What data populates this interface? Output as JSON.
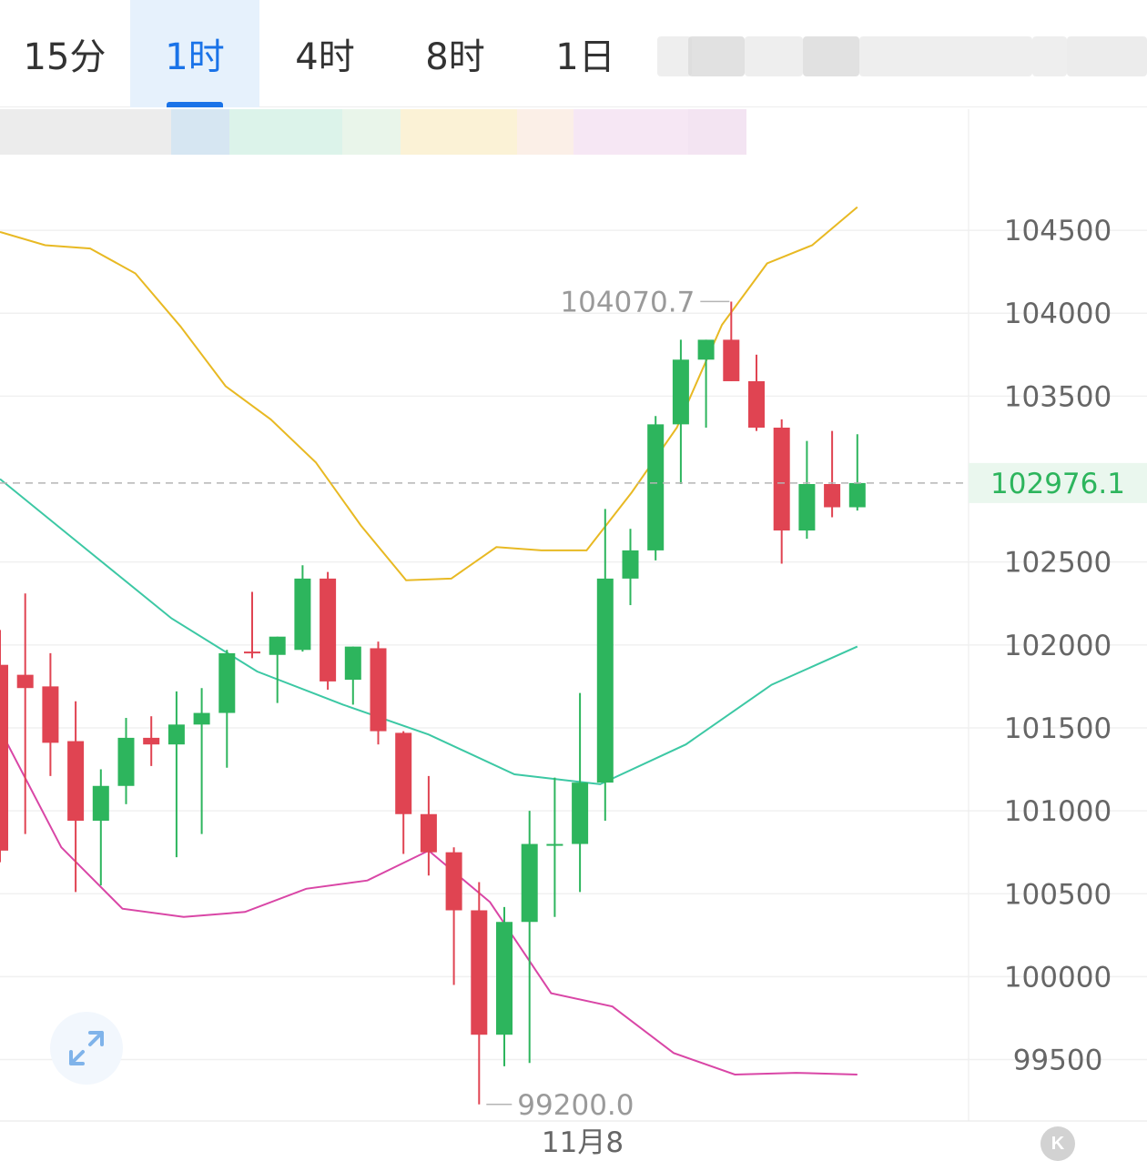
{
  "tabs": [
    {
      "label": "15分",
      "active": false
    },
    {
      "label": "1时",
      "active": true
    },
    {
      "label": "4时",
      "active": false
    },
    {
      "label": "8时",
      "active": false
    },
    {
      "label": "1日",
      "active": false
    }
  ],
  "colors": {
    "up": "#2db55d",
    "down": "#e04452",
    "boll_upper": "#e8b923",
    "boll_mid": "#3cc8a4",
    "boll_lower": "#d946a6",
    "current_price": "#2db55d",
    "active_tab": "#1a73e8",
    "grid": "#f0f0f0"
  },
  "icons": {
    "expand": "expand-arrows-icon",
    "k": "k-badge-icon"
  },
  "chart_data": {
    "type": "candlestick",
    "interval": "1时",
    "yticks": [
      104500,
      104000,
      103500,
      102500,
      102000,
      101500,
      101000,
      100500,
      100000,
      99500
    ],
    "ylim": [
      99130,
      105230
    ],
    "x_label": "11月8",
    "current_price": "102976.1",
    "current_price_value": 102976.1,
    "high_label": "104070.7",
    "high_value": 104070.7,
    "low_label": "99200.0",
    "low_value": 99200.0,
    "candles": [
      {
        "o": 101880,
        "h": 102090,
        "l": 100690,
        "c": 100760
      },
      {
        "o": 101820,
        "h": 102310,
        "l": 100860,
        "c": 101740
      },
      {
        "o": 101750,
        "h": 101950,
        "l": 101210,
        "c": 101410
      },
      {
        "o": 101420,
        "h": 101660,
        "l": 100510,
        "c": 100940
      },
      {
        "o": 100940,
        "h": 101250,
        "l": 100550,
        "c": 101150
      },
      {
        "o": 101150,
        "h": 101560,
        "l": 101040,
        "c": 101440
      },
      {
        "o": 101440,
        "h": 101570,
        "l": 101270,
        "c": 101400
      },
      {
        "o": 101400,
        "h": 101720,
        "l": 100720,
        "c": 101520
      },
      {
        "o": 101520,
        "h": 101740,
        "l": 100860,
        "c": 101590
      },
      {
        "o": 101590,
        "h": 101970,
        "l": 101260,
        "c": 101950
      },
      {
        "o": 101960,
        "h": 102320,
        "l": 101920,
        "c": 101950
      },
      {
        "o": 101940,
        "h": 102050,
        "l": 101650,
        "c": 102050
      },
      {
        "o": 101970,
        "h": 102480,
        "l": 101960,
        "c": 102400
      },
      {
        "o": 102400,
        "h": 102440,
        "l": 101730,
        "c": 101780
      },
      {
        "o": 101790,
        "h": 101990,
        "l": 101640,
        "c": 101990
      },
      {
        "o": 101980,
        "h": 102020,
        "l": 101400,
        "c": 101480
      },
      {
        "o": 101470,
        "h": 101480,
        "l": 100740,
        "c": 100980
      },
      {
        "o": 100980,
        "h": 101210,
        "l": 100610,
        "c": 100750
      },
      {
        "o": 100750,
        "h": 100780,
        "l": 99950,
        "c": 100400
      },
      {
        "o": 100400,
        "h": 100570,
        "l": 99230,
        "c": 99650
      },
      {
        "o": 99650,
        "h": 100420,
        "l": 99460,
        "c": 100330
      },
      {
        "o": 100330,
        "h": 101000,
        "l": 99480,
        "c": 100800
      },
      {
        "o": 100800,
        "h": 101200,
        "l": 100360,
        "c": 100800
      },
      {
        "o": 100800,
        "h": 101710,
        "l": 100510,
        "c": 101170
      },
      {
        "o": 101170,
        "h": 102820,
        "l": 100940,
        "c": 102400
      },
      {
        "o": 102400,
        "h": 102700,
        "l": 102240,
        "c": 102570
      },
      {
        "o": 102570,
        "h": 103380,
        "l": 102510,
        "c": 103330
      },
      {
        "o": 103330,
        "h": 103840,
        "l": 102970,
        "c": 103720
      },
      {
        "o": 103720,
        "h": 103840,
        "l": 103310,
        "c": 103840
      },
      {
        "o": 103840,
        "h": 104070,
        "l": 103590,
        "c": 103590
      },
      {
        "o": 103590,
        "h": 103750,
        "l": 103290,
        "c": 103310
      },
      {
        "o": 103310,
        "h": 103360,
        "l": 102490,
        "c": 102690
      },
      {
        "o": 102690,
        "h": 103230,
        "l": 102640,
        "c": 102970
      },
      {
        "o": 102970,
        "h": 103290,
        "l": 102770,
        "c": 102830
      },
      {
        "o": 102830,
        "h": 103270,
        "l": 102810,
        "c": 102976
      }
    ],
    "boll_upper": [
      104490,
      104410,
      104390,
      104240,
      103920,
      103560,
      103360,
      103100,
      102720,
      102390,
      102400,
      102590,
      102570,
      102570,
      102920,
      103310,
      103930,
      104300,
      104410,
      104640
    ],
    "boll_mid": [
      103000,
      102580,
      102160,
      101840,
      101640,
      101460,
      101220,
      101160,
      101400,
      101760,
      101990
    ],
    "boll_lower": [
      101490,
      100780,
      100410,
      100360,
      100390,
      100530,
      100580,
      100760,
      100450,
      99900,
      99820,
      99540,
      99410,
      99420,
      99410
    ]
  }
}
